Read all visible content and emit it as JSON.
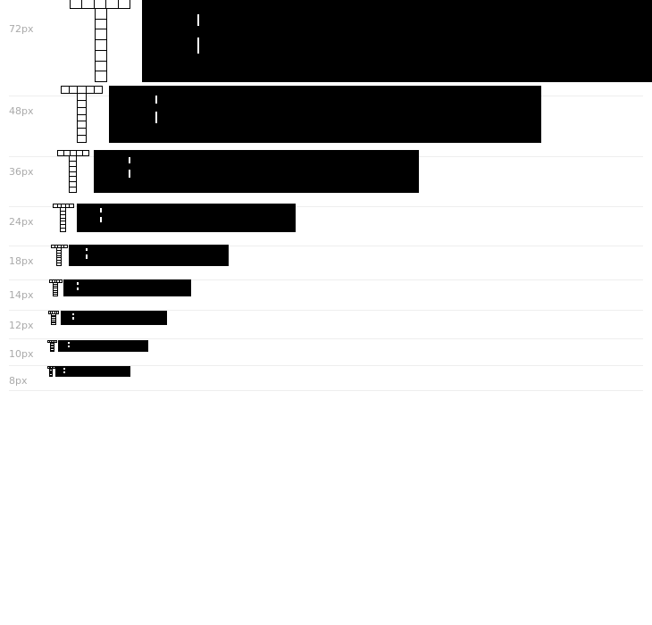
{
  "rows": [
    {
      "label": "72px"
    },
    {
      "label": "48px"
    },
    {
      "label": "36px"
    },
    {
      "label": "24px"
    },
    {
      "label": "18px"
    },
    {
      "label": "14px"
    },
    {
      "label": "12px"
    },
    {
      "label": "10px"
    },
    {
      "label": "8px"
    }
  ],
  "colors": {
    "label": "#aaaaaa",
    "block": "#000000",
    "divider": "#eeeeee"
  }
}
